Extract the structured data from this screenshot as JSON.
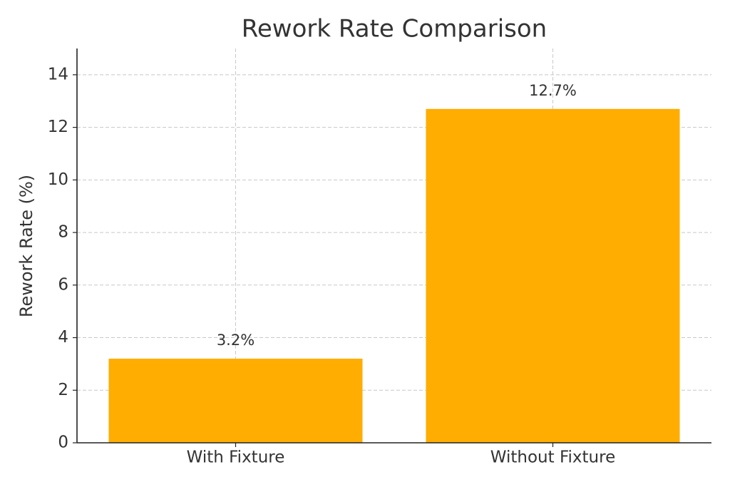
{
  "chart_data": {
    "type": "bar",
    "title": "Rework Rate Comparison",
    "ylabel": "Rework Rate (%)",
    "categories": [
      "With Fixture",
      "Without Fixture"
    ],
    "values": [
      3.2,
      12.7
    ],
    "value_labels": [
      "3.2%",
      "12.7%"
    ],
    "color": "#ffad00",
    "ylim": [
      0,
      15
    ],
    "yticks": [
      0,
      2,
      4,
      6,
      8,
      10,
      12,
      14
    ],
    "grid": true
  }
}
